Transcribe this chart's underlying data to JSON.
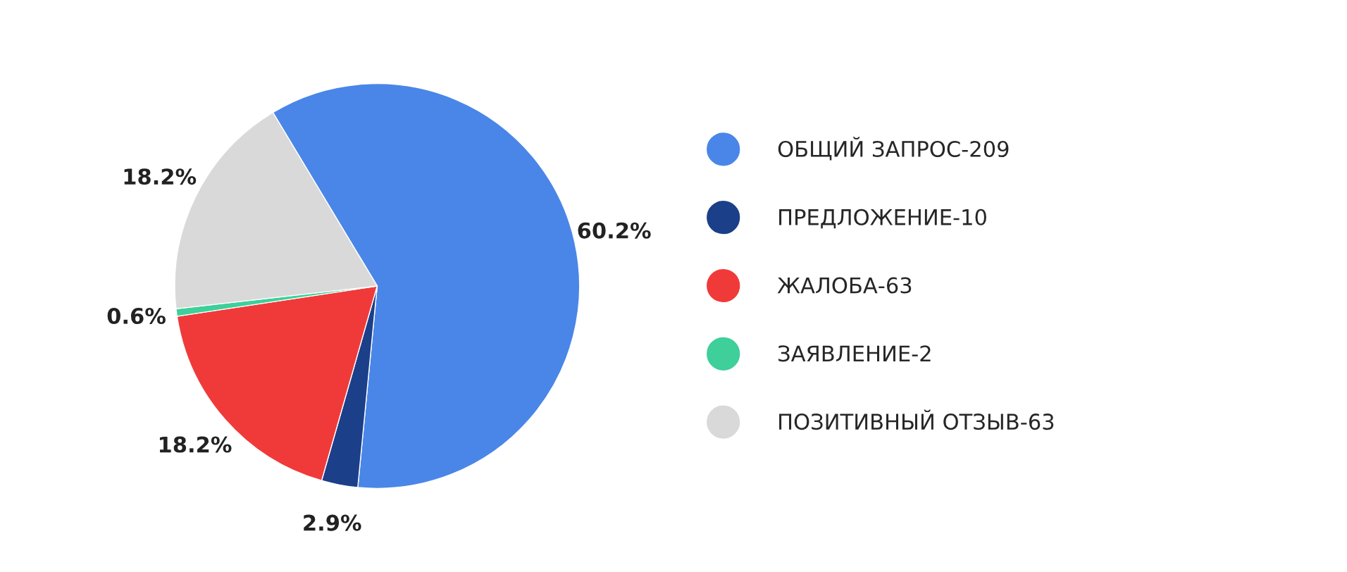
{
  "chart_data": {
    "type": "pie",
    "categories": [
      "ОБЩИЙ ЗАПРОС-209",
      "ПРЕДЛОЖЕНИЕ-10",
      "ЖАЛОБА-63",
      "ЗАЯВЛЕНИЕ-2",
      "ПОЗИТИВНЫЙ ОТЗЫВ-63"
    ],
    "values": [
      60.2,
      2.9,
      18.2,
      0.6,
      18.2
    ],
    "value_labels": [
      "60.2%",
      "2.9%",
      "18.2%",
      "0.6%",
      "18.2%"
    ],
    "colors": [
      "#4a86e8",
      "#1c3f8a",
      "#f03a3a",
      "#3ecf9a",
      "#d9d9d9"
    ],
    "legend": "right"
  }
}
